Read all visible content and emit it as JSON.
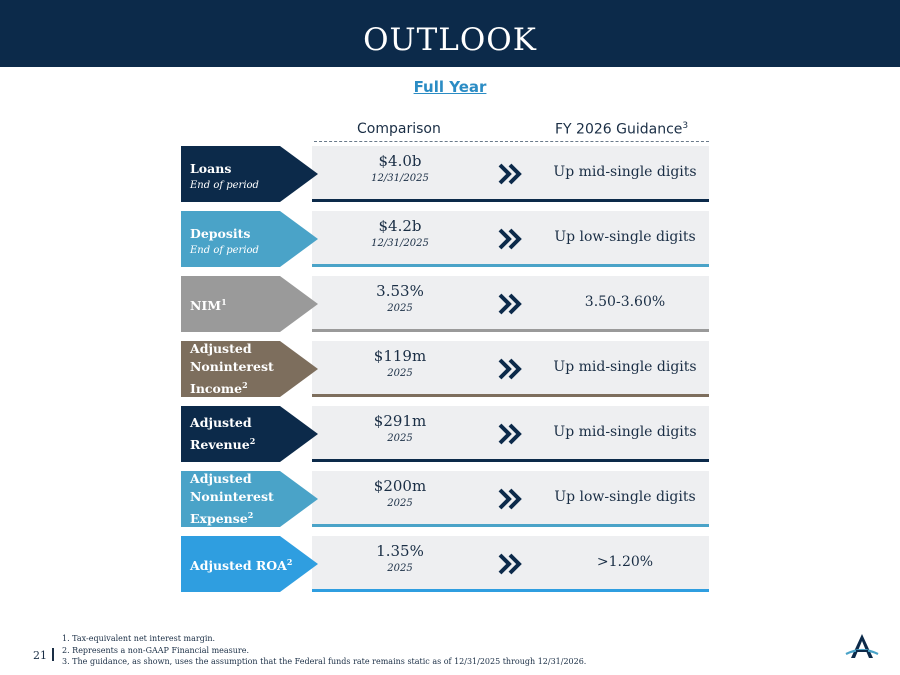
{
  "header": {
    "title": "OUTLOOK"
  },
  "subtitle": "Full Year",
  "columns": {
    "comparison": "Comparison",
    "guidance": "FY 2026 Guidance",
    "guidance_note": "3"
  },
  "rows": [
    {
      "name": "Loans",
      "note": "",
      "sub": "End of period",
      "value": "$4.0b",
      "period": "12/31/2025",
      "guidance": "Up mid-single digits",
      "color": "#0c2a4a",
      "accent": "#0c2a4a"
    },
    {
      "name": "Deposits",
      "note": "",
      "sub": "End of period",
      "value": "$4.2b",
      "period": "12/31/2025",
      "guidance": "Up low-single digits",
      "color": "#4aa3c8",
      "accent": "#4aa3c8"
    },
    {
      "name": "NIM",
      "note": "1",
      "sub": "",
      "value": "3.53%",
      "period": "2025",
      "guidance": "3.50-3.60%",
      "color": "#9a9a9a",
      "accent": "#9a9a9a"
    },
    {
      "name": "Adjusted Noninterest Income",
      "note": "2",
      "sub": "",
      "value": "$119m",
      "period": "2025",
      "guidance": "Up mid-single digits",
      "color": "#7d6e5d",
      "accent": "#7d6e5d"
    },
    {
      "name": "Adjusted Revenue",
      "note": "2",
      "sub": "",
      "value": "$291m",
      "period": "2025",
      "guidance": "Up mid-single digits",
      "color": "#0c2a4a",
      "accent": "#0c2a4a"
    },
    {
      "name": "Adjusted Noninterest Expense",
      "note": "2",
      "sub": "",
      "value": "$200m",
      "period": "2025",
      "guidance": "Up low-single digits",
      "color": "#4aa3c8",
      "accent": "#4aa3c8"
    },
    {
      "name": "Adjusted ROA",
      "note": "2",
      "sub": "",
      "value": "1.35%",
      "period": "2025",
      "guidance": ">1.20%",
      "color": "#2f9ee0",
      "accent": "#2f9ee0"
    }
  ],
  "footer": {
    "page_number": "21",
    "footnotes": [
      "1. Tax-equivalent net interest margin.",
      "2. Represents a non-GAAP Financial measure.",
      "3. The guidance, as shown, uses the assumption that the Federal funds rate remains static as of 12/31/2025 through 12/31/2026."
    ]
  },
  "icons": {
    "arrow": "double-chevron-right-icon",
    "logo": "company-logo-a-icon"
  },
  "colors": {
    "navy": "#0c2a4a",
    "link_blue": "#2b8cc4",
    "band": "#eeeff1"
  }
}
